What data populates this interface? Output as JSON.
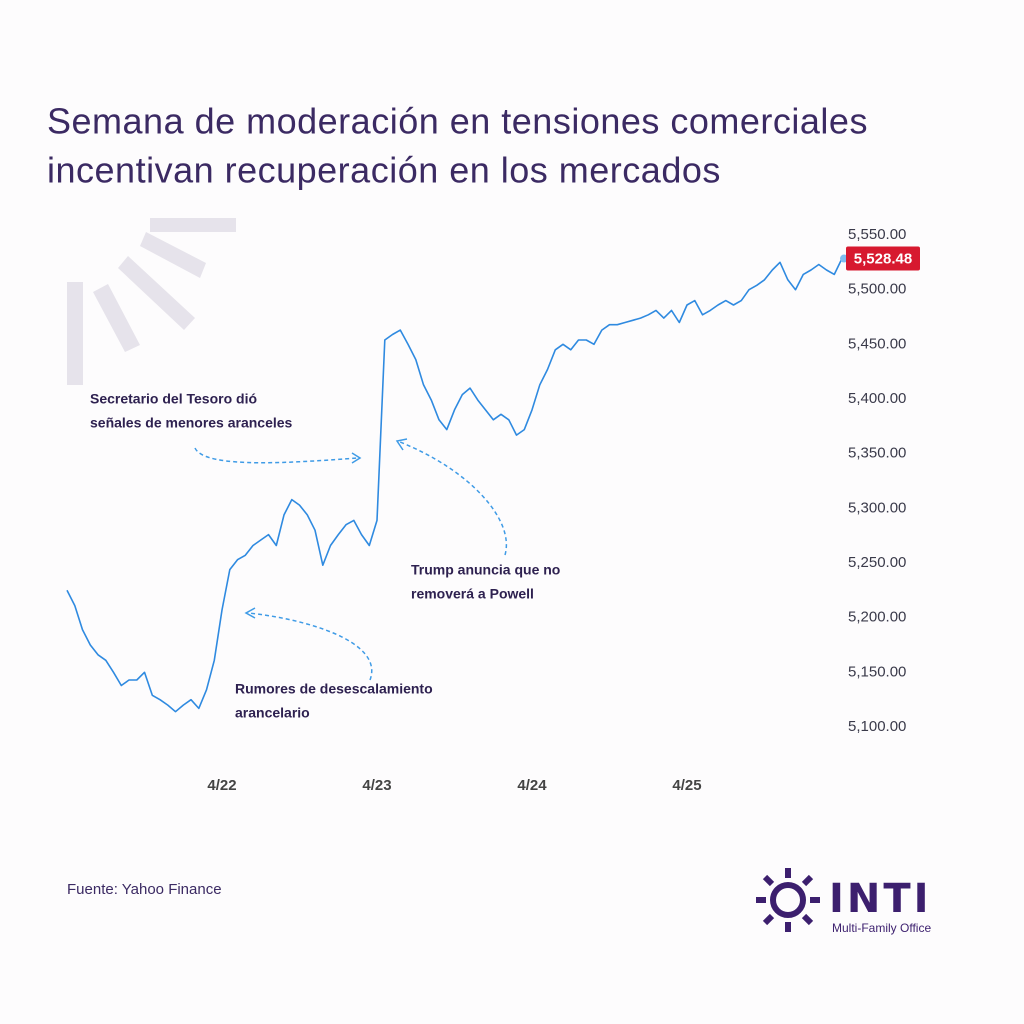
{
  "title": [
    "Semana de moderación en tensiones comerciales",
    "incentivan recuperación en los mercados"
  ],
  "chart_data": {
    "type": "line",
    "color": "#2f8ae0",
    "categories": [
      null,
      null,
      null,
      null,
      null,
      null,
      null,
      null,
      null,
      null,
      null,
      null,
      null,
      null,
      null,
      null,
      null,
      null,
      null,
      null,
      "4/22",
      null,
      null,
      null,
      null,
      null,
      null,
      null,
      null,
      null,
      null,
      null,
      null,
      null,
      null,
      null,
      null,
      null,
      null,
      null,
      "4/23",
      null,
      null,
      null,
      null,
      null,
      null,
      null,
      null,
      null,
      null,
      null,
      null,
      null,
      null,
      null,
      null,
      null,
      null,
      null,
      "4/24",
      null,
      null,
      null,
      null,
      null,
      null,
      null,
      null,
      null,
      null,
      null,
      null,
      null,
      null,
      null,
      null,
      null,
      null,
      null,
      "4/25",
      null,
      null,
      null,
      null,
      null,
      null,
      null,
      null,
      null,
      null,
      null,
      null,
      null,
      null,
      null,
      null,
      null,
      null,
      null,
      null
    ],
    "values": [
      5225,
      5211,
      5189,
      5175,
      5166,
      5161,
      5150,
      5138,
      5143,
      5143,
      5150,
      5129,
      5125,
      5120,
      5114,
      5120,
      5125,
      5117,
      5134,
      5161,
      5207,
      5244,
      5253,
      5257,
      5266,
      5271,
      5276,
      5266,
      5294,
      5308,
      5303,
      5294,
      5280,
      5248,
      5266,
      5276,
      5285,
      5289,
      5276,
      5266,
      5289,
      5454,
      5459,
      5463,
      5450,
      5436,
      5413,
      5399,
      5381,
      5372,
      5390,
      5404,
      5410,
      5399,
      5390,
      5381,
      5386,
      5381,
      5367,
      5372,
      5390,
      5413,
      5427,
      5445,
      5450,
      5445,
      5454,
      5454,
      5450,
      5463,
      5468,
      5468,
      5470,
      5472,
      5474,
      5477,
      5481,
      5474,
      5481,
      5470,
      5486,
      5490,
      5477,
      5481,
      5486,
      5490,
      5486,
      5490,
      5500,
      5504,
      5509,
      5518,
      5525,
      5509,
      5500,
      5514,
      5518,
      5523,
      5518,
      5514,
      5528.48
    ],
    "current_price": {
      "value": 5528.48,
      "label": "5,528.48",
      "color": "#d7192f"
    },
    "ylim": [
      5100,
      5550
    ],
    "yticks": [
      {
        "value": 5100,
        "label": "5,100.00"
      },
      {
        "value": 5150,
        "label": "5,150.00"
      },
      {
        "value": 5200,
        "label": "5,200.00"
      },
      {
        "value": 5250,
        "label": "5,250.00"
      },
      {
        "value": 5300,
        "label": "5,300.00"
      },
      {
        "value": 5350,
        "label": "5,350.00"
      },
      {
        "value": 5400,
        "label": "5,400.00"
      },
      {
        "value": 5450,
        "label": "5,450.00"
      },
      {
        "value": 5500,
        "label": "5,500.00"
      },
      {
        "value": 5550,
        "label": "5,550.00"
      }
    ],
    "grid": false,
    "annotations": [
      {
        "lines": [
          "Secretario del Tesoro dió",
          "señales de menores aranceles"
        ]
      },
      {
        "lines": [
          "Trump anuncia que no",
          "removerá a Powell"
        ]
      },
      {
        "lines": [
          "Rumores de desescalamiento",
          "arancelario"
        ]
      }
    ]
  },
  "source": "Fuente: Yahoo Finance",
  "logo": {
    "name": "INTI",
    "tagline": "Multi-Family Office"
  }
}
